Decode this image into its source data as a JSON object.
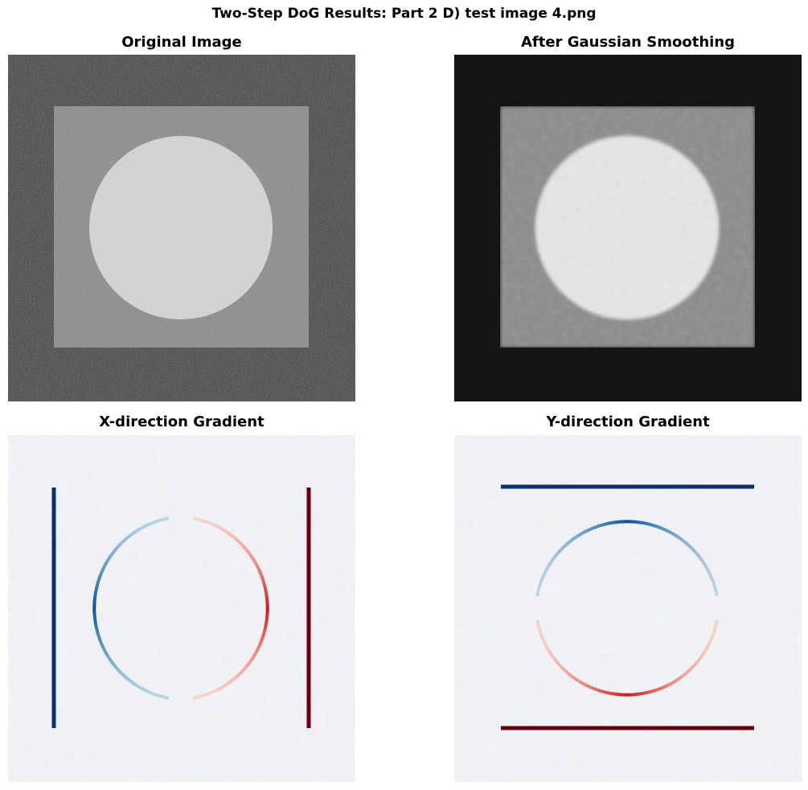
{
  "suptitle": "Two-Step DoG Results: Part 2 D) test image 4.png",
  "panels": {
    "original": {
      "title": "Original Image",
      "colormap": "gray"
    },
    "smoothed": {
      "title": "After Gaussian Smoothing",
      "colormap": "gray"
    },
    "x_gradient": {
      "title": "X-direction Gradient",
      "colormap": "RdBu"
    },
    "y_gradient": {
      "title": "Y-direction Gradient",
      "colormap": "RdBu"
    }
  },
  "colors": {
    "background_dark": "#3a3a3a",
    "square_gray": "#8a8a8a",
    "circle_light": "#d6d6d6",
    "smoothed_background": "#141414",
    "smoothed_square": "#8c8c8c",
    "smoothed_circle": "#e6e6e6",
    "gradient_negative": "#08306b",
    "gradient_positive": "#67000d",
    "gradient_neutral": "#f4f6f9"
  }
}
